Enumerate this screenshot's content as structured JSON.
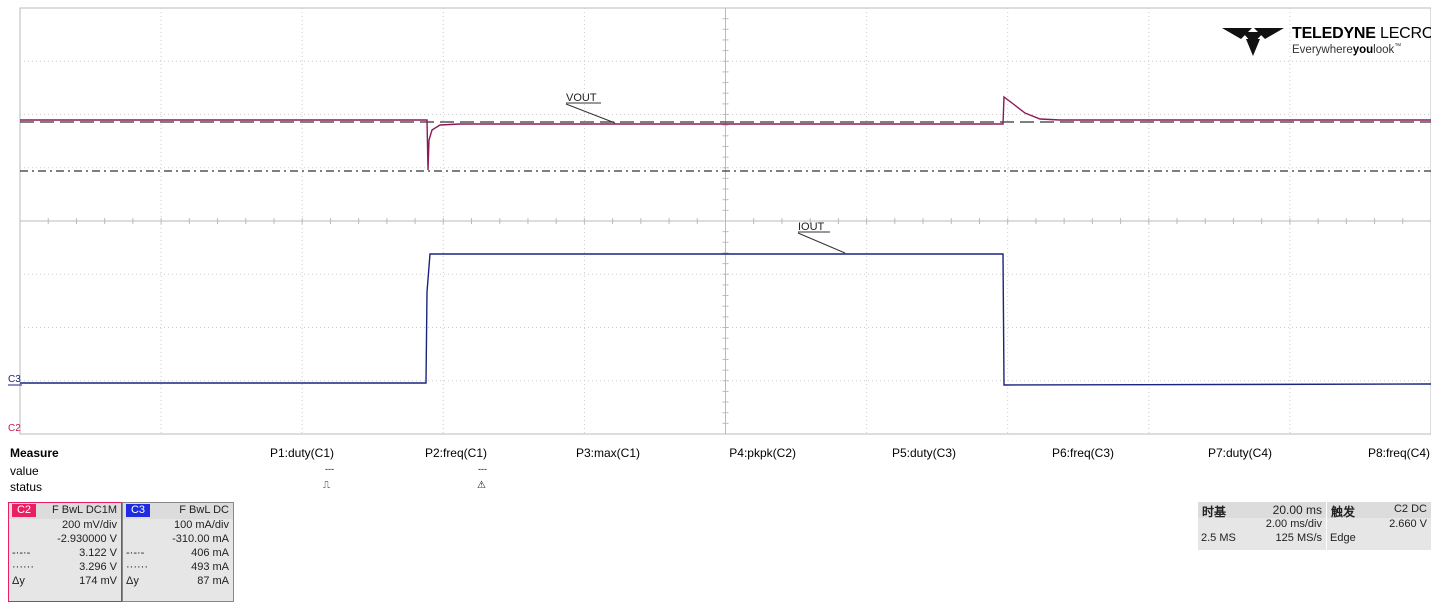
{
  "brand": {
    "name_bold": "TELEDYNE",
    "name_thin": "LECROY",
    "tag_pre": "Everywhere",
    "tag_bold": "you",
    "tag_post": "look",
    "tm": "™"
  },
  "waveforms": {
    "vout_label": "VOUT",
    "iout_label": "IOUT",
    "c3_marker": "C3",
    "c2_marker": "C2",
    "vout_color": "#8b1a5a",
    "iout_color": "#1a237e"
  },
  "measure": {
    "title": "Measure",
    "value_label": "value",
    "status_label": "status",
    "params": [
      {
        "name": "P1:duty(C1)",
        "value": "",
        "status": "⎍"
      },
      {
        "name": "P2:freq(C1)",
        "value": "---",
        "status": "⚠"
      },
      {
        "name": "P3:max(C1)",
        "value": "",
        "status": ""
      },
      {
        "name": "P4:pkpk(C2)",
        "value": "",
        "status": ""
      },
      {
        "name": "P5:duty(C3)",
        "value": "",
        "status": ""
      },
      {
        "name": "P6:freq(C3)",
        "value": "",
        "status": ""
      },
      {
        "name": "P7:duty(C4)",
        "value": "",
        "status": ""
      },
      {
        "name": "P8:freq(C4)",
        "value": "",
        "status": ""
      }
    ],
    "p1_value": "---"
  },
  "channel2": {
    "badge": "C2",
    "coupling": "F BwL DC1M",
    "scale": "200 mV/div",
    "offset": "-2.930000 V",
    "cursor1_sym": "-·-·-",
    "cursor1": "3.122 V",
    "cursor2_sym": "······",
    "cursor2": "3.296 V",
    "delta_sym": "Δy",
    "delta": "174 mV",
    "color": "#e91e63"
  },
  "channel3": {
    "badge": "C3",
    "coupling": "F BwL DC",
    "scale": "100 mA/div",
    "offset": "-310.00 mA",
    "cursor1_sym": "-·-·-",
    "cursor1": "406 mA",
    "cursor2_sym": "······",
    "cursor2": "493 mA",
    "delta_sym": "Δy",
    "delta": "87 mA",
    "color": "#1f2be0"
  },
  "timebase": {
    "title": "时基",
    "delay": "20.00 ms",
    "scale": "2.00 ms/div",
    "points": "2.5 MS",
    "rate": "125 MS/s"
  },
  "trigger": {
    "title": "触发",
    "source": "C2 DC",
    "level": "2.660 V",
    "type": "Edge"
  }
}
